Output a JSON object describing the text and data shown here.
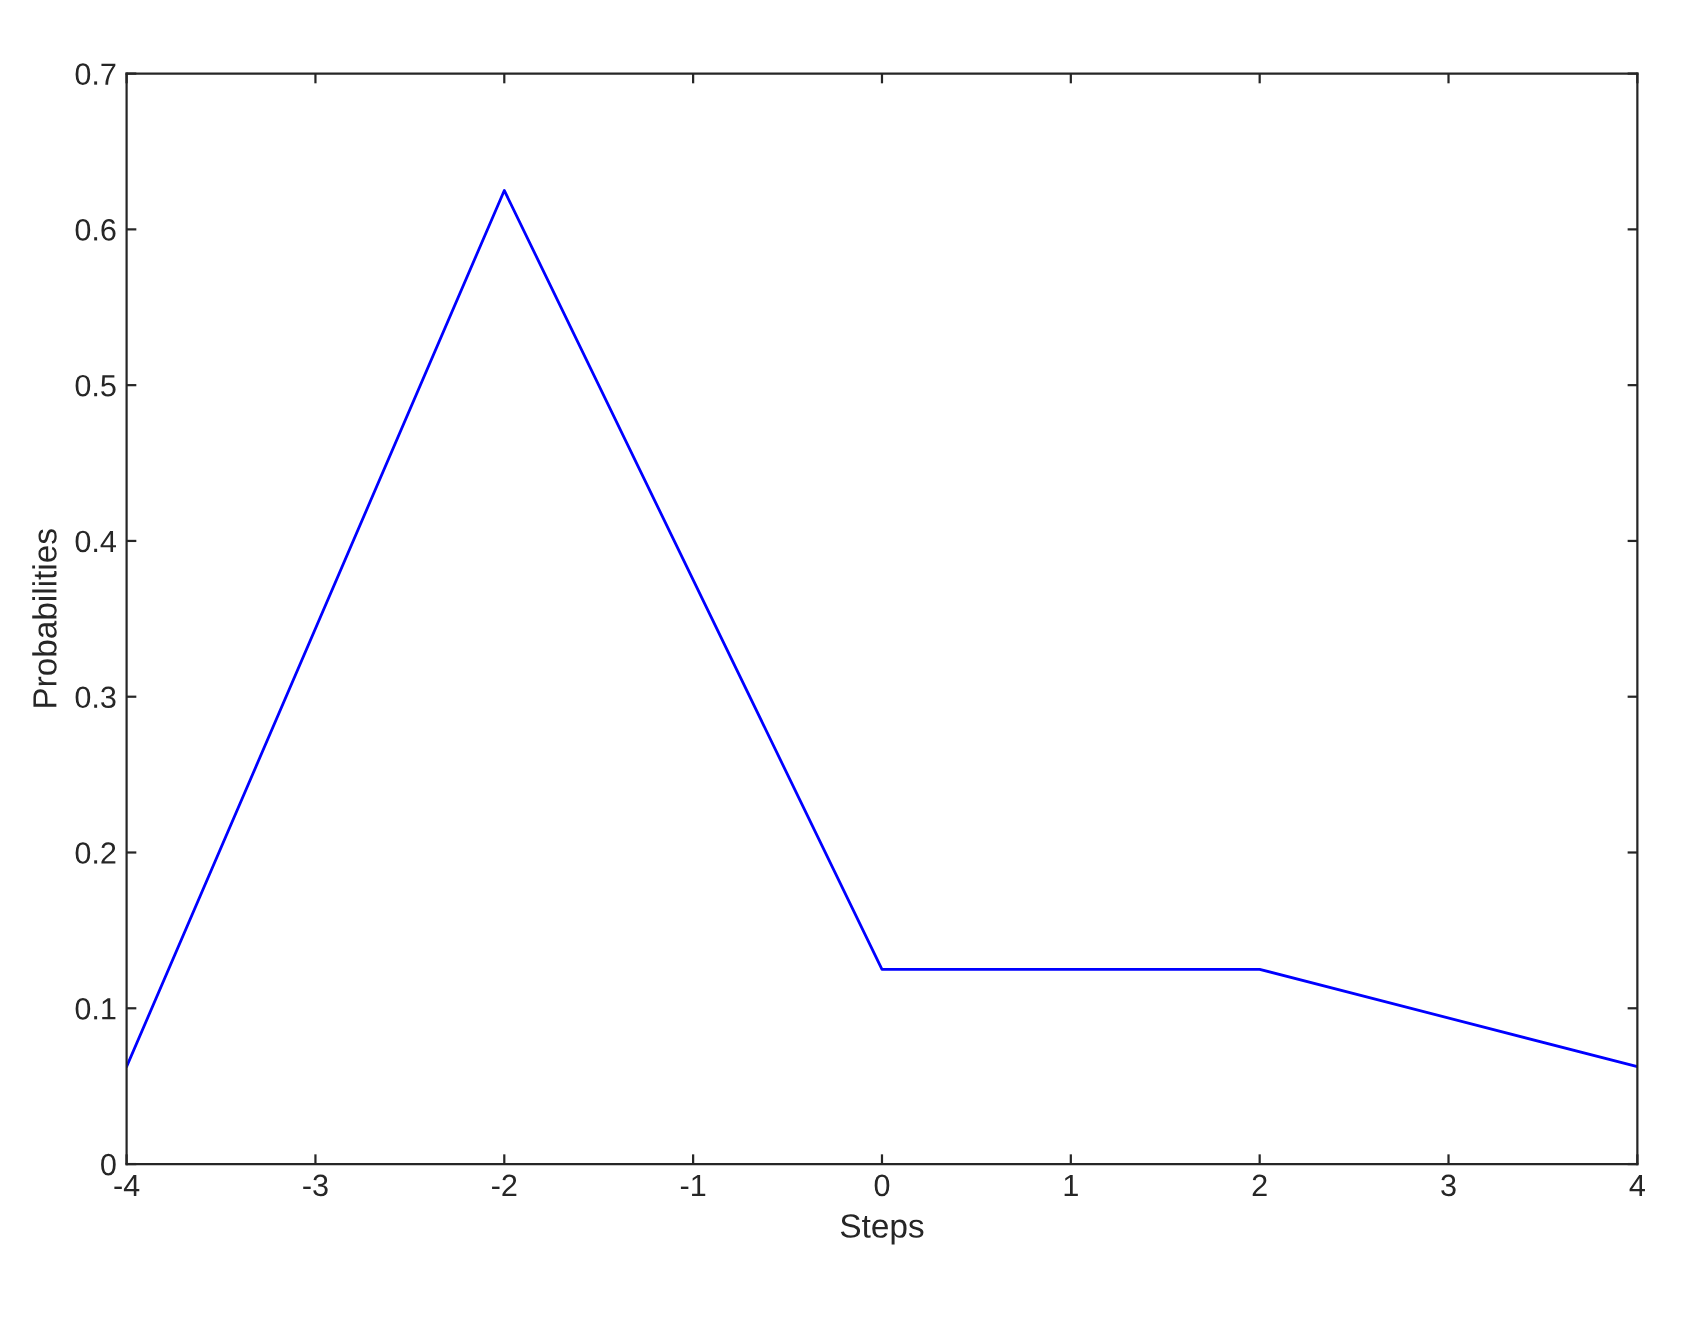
{
  "chart_data": {
    "type": "line",
    "xlabel": "Steps",
    "ylabel": "Probabilities",
    "x": [
      -4,
      -2,
      0,
      2,
      4
    ],
    "series": [
      {
        "color": "#0000ff",
        "values": [
          0.0625,
          0.625,
          0.125,
          0.125,
          0.0625
        ]
      }
    ],
    "xlim": [
      -4,
      4
    ],
    "xticks": [
      -4,
      -3,
      -2,
      -1,
      0,
      1,
      2,
      3,
      4
    ],
    "ylim": [
      0,
      0.7
    ],
    "yticks": [
      0,
      0.1,
      0.2,
      0.3,
      0.4,
      0.5,
      0.6,
      0.7
    ],
    "grid": false,
    "legend": false
  }
}
